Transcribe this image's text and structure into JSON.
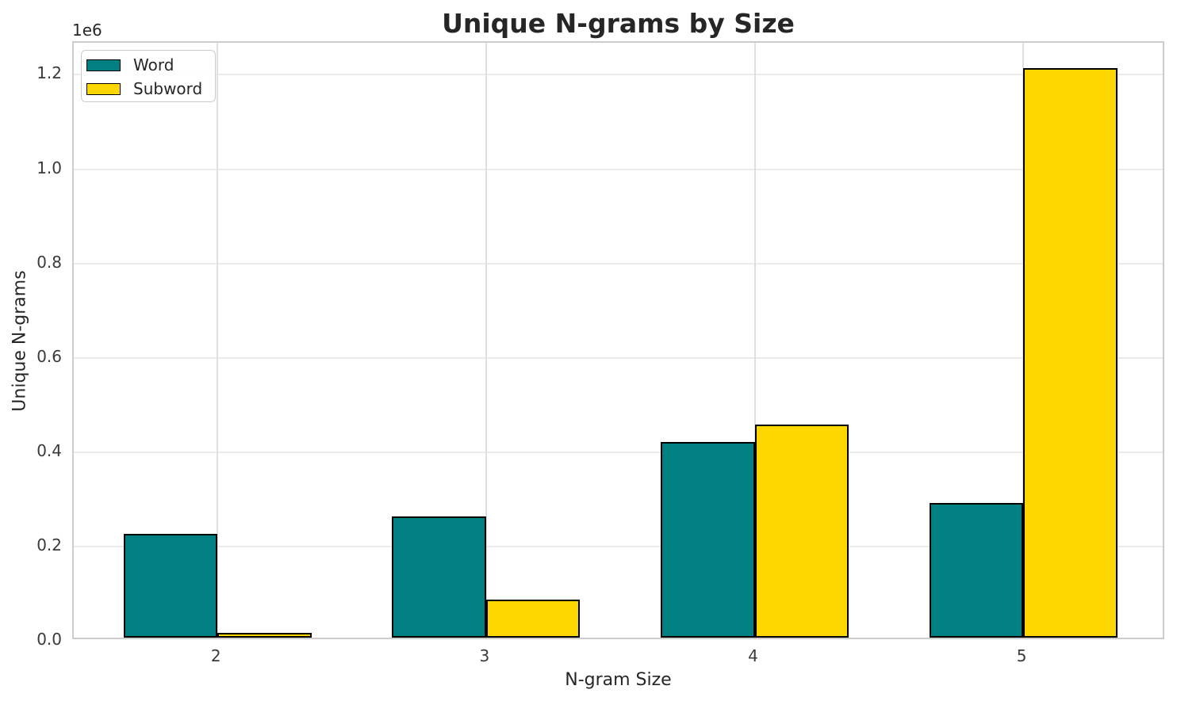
{
  "chart_data": {
    "type": "bar",
    "title": "Unique N-grams by Size",
    "xlabel": "N-gram Size",
    "ylabel": "Unique N-grams",
    "offset_text": "1e6",
    "categories": [
      "2",
      "3",
      "4",
      "5"
    ],
    "series": [
      {
        "name": "Word",
        "color": "#008080",
        "values": [
          220000,
          257000,
          415000,
          285000
        ]
      },
      {
        "name": "Subword",
        "color": "#FFD700",
        "values": [
          10000,
          81000,
          452000,
          1207000
        ]
      }
    ],
    "ylim": [
      0,
      1268000
    ],
    "yticks": {
      "values": [
        0,
        200000,
        400000,
        600000,
        800000,
        1000000,
        1200000
      ],
      "labels": [
        "0.0",
        "0.2",
        "0.4",
        "0.6",
        "0.8",
        "1.0",
        "1.2"
      ]
    },
    "grid": true,
    "legend_position": "upper left",
    "bar_edge_color": "#000000"
  }
}
